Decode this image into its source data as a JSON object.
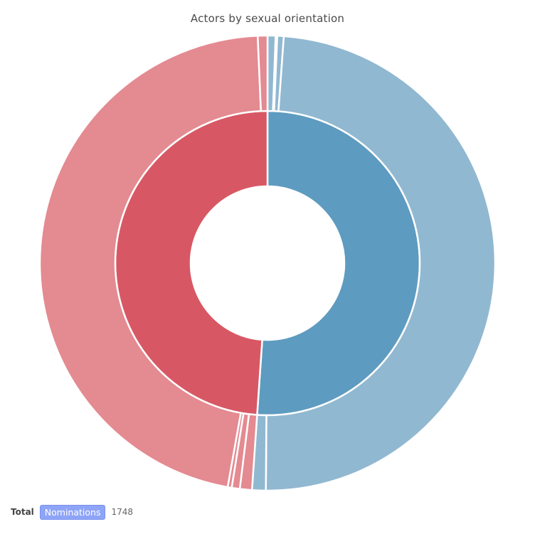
{
  "chart_data": {
    "type": "pie",
    "title": "Actors by sexual orientation",
    "inner_ring": [
      {
        "value": 893,
        "color": "#5e9bc0"
      },
      {
        "value": 855,
        "color": "#d75864"
      }
    ],
    "outer_ring": [
      {
        "value": 10,
        "color": "#91b8d1"
      },
      {
        "value": 2,
        "color": "#91b8d1"
      },
      {
        "value": 8,
        "color": "#91b8d1"
      },
      {
        "value": 856,
        "color": "#91b8d1"
      },
      {
        "value": 17,
        "color": "#91b8d1"
      },
      {
        "value": 15,
        "color": "#e48a91"
      },
      {
        "value": 10,
        "color": "#e48a91"
      },
      {
        "value": 5,
        "color": "#e48a91"
      },
      {
        "value": 813,
        "color": "#e48a91"
      },
      {
        "value": 12,
        "color": "#e48a91"
      }
    ]
  },
  "footer": {
    "total_label": "Total",
    "metric_button": "Nominations",
    "total_value": "1748"
  }
}
